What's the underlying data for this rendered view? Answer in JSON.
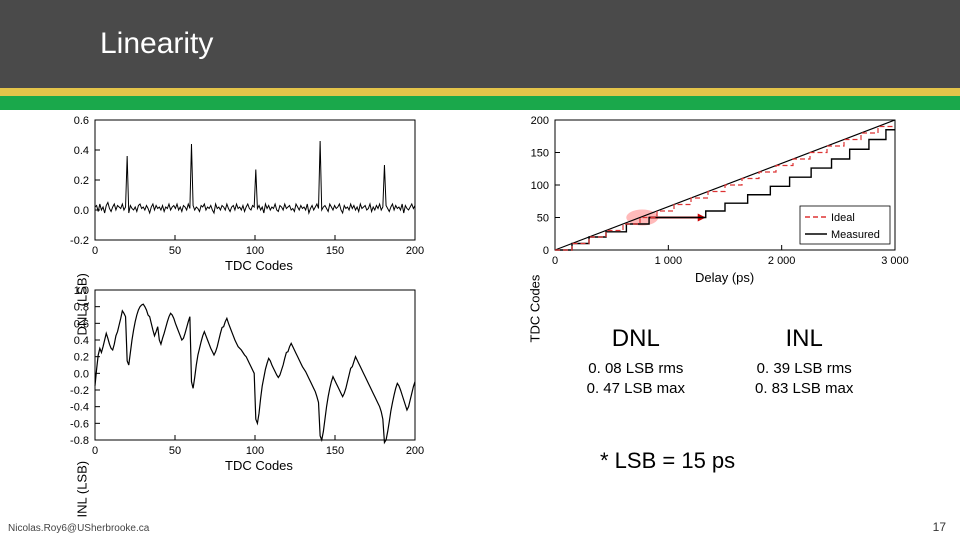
{
  "slide": {
    "title": "Linearity",
    "footer_email": "Nicolas.Roy6@USherbrooke.ca",
    "page_number": "17",
    "header_bg": "#4a4a4a",
    "stripe_yellow": "#e4c44a",
    "stripe_green": "#1aa84b"
  },
  "dnl_chart": {
    "type": "line",
    "ylabel": "DNL (LSB)",
    "xlabel": "TDC Codes",
    "xlim": [
      0,
      200
    ],
    "ylim": [
      -0.2,
      0.6
    ],
    "xticks": [
      0,
      50,
      100,
      150,
      200
    ],
    "yticks": [
      -0.2,
      0.0,
      0.2,
      0.4,
      0.6
    ],
    "line_color": "#000000",
    "background_color": "#ffffff",
    "label_fontsize": 13,
    "data_y": [
      0.02,
      0.03,
      -0.01,
      0.04,
      0.0,
      0.02,
      -0.02,
      0.03,
      0.05,
      0.01,
      -0.01,
      0.02,
      0.04,
      0.0,
      0.03,
      0.02,
      0.01,
      0.04,
      0.0,
      0.02,
      0.36,
      -0.02,
      0.03,
      0.01,
      0.0,
      0.02,
      -0.01,
      0.03,
      0.04,
      0.01,
      0.02,
      0.0,
      0.03,
      0.01,
      -0.02,
      0.02,
      0.04,
      0.0,
      0.03,
      0.01,
      0.02,
      0.0,
      0.03,
      -0.01,
      0.02,
      0.01,
      0.04,
      0.0,
      0.02,
      0.03,
      0.01,
      0.04,
      0.0,
      0.02,
      -0.01,
      0.03,
      0.02,
      0.0,
      0.04,
      0.01,
      0.44,
      0.03,
      0.0,
      0.02,
      0.01,
      -0.01,
      0.03,
      0.02,
      0.04,
      0.0,
      0.02,
      0.01,
      0.03,
      0.0,
      -0.02,
      0.04,
      0.01,
      0.02,
      0.0,
      0.03,
      0.02,
      0.0,
      0.04,
      0.01,
      -0.01,
      0.02,
      0.03,
      0.0,
      0.04,
      0.01,
      0.02,
      0.0,
      0.03,
      -0.01,
      0.02,
      0.04,
      0.01,
      0.0,
      0.03,
      0.02,
      0.27,
      0.01,
      0.03,
      0.0,
      0.02,
      -0.02,
      0.04,
      0.01,
      0.03,
      0.0,
      0.02,
      0.01,
      0.04,
      0.0,
      -0.01,
      0.03,
      0.02,
      0.0,
      0.04,
      0.01,
      0.02,
      0.03,
      0.0,
      0.01,
      -0.01,
      0.04,
      0.02,
      0.0,
      0.03,
      0.01,
      0.02,
      0.0,
      0.04,
      -0.02,
      0.01,
      0.03,
      0.0,
      0.02,
      0.04,
      0.01,
      0.46,
      0.0,
      0.02,
      0.03,
      0.01,
      -0.01,
      0.04,
      0.02,
      0.0,
      0.03,
      0.01,
      0.02,
      0.04,
      0.0,
      -0.02,
      0.03,
      0.01,
      0.02,
      0.0,
      0.04,
      0.01,
      0.03,
      0.0,
      0.02,
      -0.01,
      0.04,
      0.01,
      0.02,
      0.03,
      0.0,
      0.01,
      0.04,
      -0.01,
      0.02,
      0.0,
      0.03,
      0.01,
      0.04,
      0.0,
      0.02,
      0.3,
      0.03,
      0.01,
      -0.01,
      0.02,
      0.04,
      0.0,
      0.03,
      0.01,
      0.02,
      0.0,
      0.04,
      -0.02,
      0.03,
      0.01,
      0.0,
      0.02,
      0.04,
      0.01,
      0.03
    ]
  },
  "inl_chart": {
    "type": "line",
    "ylabel": "INL (LSB)",
    "xlabel": "TDC Codes",
    "xlim": [
      0,
      200
    ],
    "ylim": [
      -0.8,
      1.0
    ],
    "xticks": [
      0,
      50,
      100,
      150,
      200
    ],
    "yticks": [
      -0.8,
      -0.6,
      -0.4,
      -0.2,
      0.0,
      0.2,
      0.4,
      0.6,
      0.8,
      1.0
    ],
    "line_color": "#000000",
    "background_color": "#ffffff",
    "label_fontsize": 13,
    "data_y": [
      -0.15,
      0.05,
      0.22,
      0.3,
      0.25,
      0.32,
      0.4,
      0.48,
      0.42,
      0.35,
      0.3,
      0.28,
      0.35,
      0.45,
      0.5,
      0.58,
      0.66,
      0.75,
      0.72,
      0.68,
      0.15,
      0.1,
      0.25,
      0.4,
      0.52,
      0.62,
      0.7,
      0.76,
      0.8,
      0.82,
      0.83,
      0.8,
      0.76,
      0.7,
      0.68,
      0.6,
      0.52,
      0.45,
      0.5,
      0.56,
      0.4,
      0.35,
      0.42,
      0.48,
      0.55,
      0.62,
      0.68,
      0.72,
      0.7,
      0.66,
      0.6,
      0.55,
      0.5,
      0.45,
      0.4,
      0.42,
      0.48,
      0.55,
      0.62,
      0.68,
      -0.1,
      -0.18,
      -0.05,
      0.1,
      0.22,
      0.3,
      0.38,
      0.45,
      0.5,
      0.45,
      0.4,
      0.35,
      0.3,
      0.26,
      0.22,
      0.26,
      0.32,
      0.4,
      0.48,
      0.55,
      0.56,
      0.62,
      0.66,
      0.6,
      0.55,
      0.5,
      0.45,
      0.4,
      0.36,
      0.32,
      0.3,
      0.28,
      0.25,
      0.22,
      0.2,
      0.16,
      0.12,
      0.08,
      0.04,
      0.0,
      -0.55,
      -0.6,
      -0.48,
      -0.3,
      -0.15,
      -0.05,
      0.05,
      0.12,
      0.18,
      0.15,
      0.1,
      0.06,
      0.02,
      -0.02,
      -0.05,
      -0.02,
      0.04,
      0.1,
      0.18,
      0.25,
      0.26,
      0.32,
      0.36,
      0.32,
      0.28,
      0.24,
      0.2,
      0.16,
      0.12,
      0.08,
      0.05,
      0.02,
      -0.02,
      -0.06,
      -0.1,
      -0.14,
      -0.18,
      -0.22,
      -0.28,
      -0.35,
      -0.75,
      -0.8,
      -0.7,
      -0.55,
      -0.4,
      -0.28,
      -0.18,
      -0.1,
      -0.04,
      -0.08,
      -0.12,
      -0.16,
      -0.2,
      -0.24,
      -0.28,
      -0.24,
      -0.18,
      -0.1,
      -0.02,
      0.06,
      0.08,
      0.14,
      0.2,
      0.16,
      0.12,
      0.08,
      0.04,
      0.0,
      -0.04,
      -0.08,
      -0.12,
      -0.16,
      -0.2,
      -0.24,
      -0.28,
      -0.32,
      -0.36,
      -0.4,
      -0.46,
      -0.55,
      -0.83,
      -0.8,
      -0.7,
      -0.58,
      -0.45,
      -0.35,
      -0.26,
      -0.18,
      -0.12,
      -0.15,
      -0.2,
      -0.26,
      -0.32,
      -0.38,
      -0.44,
      -0.4,
      -0.32,
      -0.24,
      -0.16,
      -0.1
    ]
  },
  "delay_chart": {
    "type": "step",
    "ylabel": "TDC Codes",
    "xlabel": "Delay (ps)",
    "xlim": [
      0,
      3000
    ],
    "ylim": [
      0,
      200
    ],
    "xticks": [
      0,
      1000,
      2000,
      3000
    ],
    "xtick_labels": [
      "0",
      "1 000",
      "2 000",
      "3 000"
    ],
    "yticks": [
      0,
      50,
      100,
      150,
      200
    ],
    "legend": [
      {
        "label": "Ideal",
        "color": "#d33",
        "dash": "5,3"
      },
      {
        "label": "Measured",
        "color": "#000",
        "dash": ""
      }
    ],
    "ideal_color": "#d33",
    "measured_color": "#000000",
    "highlight_color": "#ffb3b3",
    "arrow_color": "#cc0000",
    "background_color": "#ffffff",
    "label_fontsize": 13,
    "steps_measured": [
      [
        0,
        0
      ],
      [
        150,
        0
      ],
      [
        150,
        10
      ],
      [
        300,
        10
      ],
      [
        300,
        20
      ],
      [
        450,
        20
      ],
      [
        450,
        28
      ],
      [
        630,
        28
      ],
      [
        630,
        40
      ],
      [
        830,
        40
      ],
      [
        830,
        50
      ],
      [
        1330,
        50
      ],
      [
        1330,
        60
      ],
      [
        1500,
        60
      ],
      [
        1500,
        72
      ],
      [
        1700,
        72
      ],
      [
        1700,
        85
      ],
      [
        1900,
        85
      ],
      [
        1900,
        98
      ],
      [
        2070,
        98
      ],
      [
        2070,
        112
      ],
      [
        2260,
        112
      ],
      [
        2260,
        126
      ],
      [
        2440,
        126
      ],
      [
        2440,
        140
      ],
      [
        2600,
        140
      ],
      [
        2600,
        155
      ],
      [
        2770,
        155
      ],
      [
        2770,
        170
      ],
      [
        2920,
        170
      ],
      [
        2920,
        185
      ],
      [
        3000,
        185
      ]
    ],
    "steps_ideal": [
      [
        0,
        0
      ],
      [
        150,
        0
      ],
      [
        150,
        10
      ],
      [
        300,
        10
      ],
      [
        300,
        20
      ],
      [
        450,
        20
      ],
      [
        450,
        30
      ],
      [
        600,
        30
      ],
      [
        600,
        40
      ],
      [
        750,
        40
      ],
      [
        750,
        50
      ],
      [
        900,
        50
      ],
      [
        900,
        60
      ],
      [
        1050,
        60
      ],
      [
        1050,
        70
      ],
      [
        1200,
        70
      ],
      [
        1200,
        80
      ],
      [
        1350,
        80
      ],
      [
        1350,
        90
      ],
      [
        1500,
        90
      ],
      [
        1500,
        100
      ],
      [
        1650,
        100
      ],
      [
        1650,
        110
      ],
      [
        1800,
        110
      ],
      [
        1800,
        120
      ],
      [
        1950,
        120
      ],
      [
        1950,
        130
      ],
      [
        2100,
        130
      ],
      [
        2100,
        140
      ],
      [
        2250,
        140
      ],
      [
        2250,
        150
      ],
      [
        2400,
        150
      ],
      [
        2400,
        160
      ],
      [
        2550,
        160
      ],
      [
        2550,
        170
      ],
      [
        2700,
        170
      ],
      [
        2700,
        180
      ],
      [
        2850,
        180
      ],
      [
        2850,
        190
      ],
      [
        3000,
        190
      ]
    ],
    "diag_line": [
      [
        0,
        0
      ],
      [
        3000,
        200
      ]
    ]
  },
  "metrics": {
    "dnl": {
      "title": "DNL",
      "rms": "0. 08 LSB rms",
      "max": "0. 47 LSB max"
    },
    "inl": {
      "title": "INL",
      "rms": "0. 39 LSB rms",
      "max": "0. 83 LSB max"
    }
  },
  "lsb_note": "* LSB = 15 ps"
}
